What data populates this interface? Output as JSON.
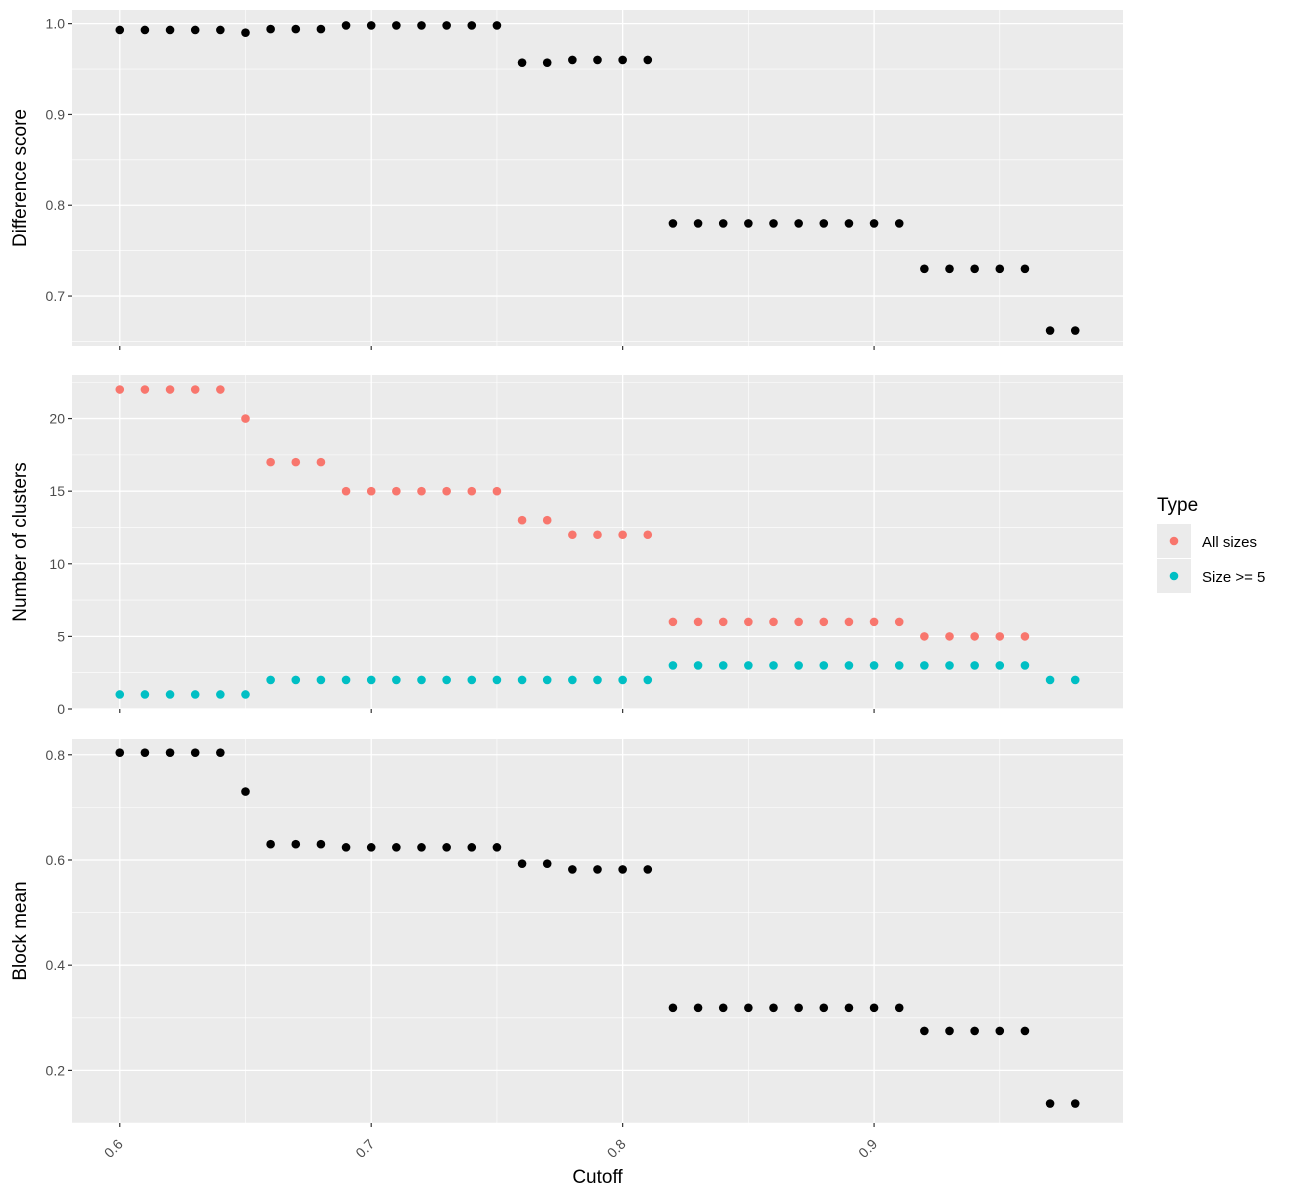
{
  "chart_data": [
    {
      "type": "scatter",
      "ylabel": "Difference score",
      "ylim": [
        0.645,
        1.015
      ],
      "yticks": [
        0.7,
        0.8,
        0.9,
        1.0
      ],
      "ytick_labels": [
        "0.7",
        "0.8",
        "0.9",
        "1.0"
      ],
      "series": [
        {
          "x": [
            0.6,
            0.61,
            0.62,
            0.63,
            0.64,
            0.65,
            0.66,
            0.67,
            0.68,
            0.69,
            0.7,
            0.71,
            0.72,
            0.73,
            0.74,
            0.75,
            0.76,
            0.77,
            0.78,
            0.79,
            0.8,
            0.81,
            0.82,
            0.83,
            0.84,
            0.85,
            0.86,
            0.87,
            0.88,
            0.89,
            0.9,
            0.91,
            0.92,
            0.93,
            0.94,
            0.95,
            0.96,
            0.97,
            0.98
          ],
          "values": [
            0.993,
            0.993,
            0.993,
            0.993,
            0.993,
            0.99,
            0.994,
            0.994,
            0.994,
            0.998,
            0.998,
            0.998,
            0.998,
            0.998,
            0.998,
            0.998,
            0.957,
            0.957,
            0.96,
            0.96,
            0.96,
            0.96,
            0.78,
            0.78,
            0.78,
            0.78,
            0.78,
            0.78,
            0.78,
            0.78,
            0.78,
            0.78,
            0.73,
            0.73,
            0.73,
            0.73,
            0.73,
            0.662,
            0.662
          ],
          "color": "#000000"
        }
      ]
    },
    {
      "type": "scatter",
      "ylabel": "Number of clusters",
      "ylim": [
        0,
        23
      ],
      "yticks": [
        0,
        5,
        10,
        15,
        20
      ],
      "ytick_labels": [
        "0",
        "5",
        "10",
        "15",
        "20"
      ],
      "series": [
        {
          "name": "All sizes",
          "x": [
            0.6,
            0.61,
            0.62,
            0.63,
            0.64,
            0.65,
            0.66,
            0.67,
            0.68,
            0.69,
            0.7,
            0.71,
            0.72,
            0.73,
            0.74,
            0.75,
            0.76,
            0.77,
            0.78,
            0.79,
            0.8,
            0.81,
            0.82,
            0.83,
            0.84,
            0.85,
            0.86,
            0.87,
            0.88,
            0.89,
            0.9,
            0.91,
            0.92,
            0.93,
            0.94,
            0.95,
            0.96
          ],
          "values": [
            22,
            22,
            22,
            22,
            22,
            20,
            17,
            17,
            17,
            15,
            15,
            15,
            15,
            15,
            15,
            15,
            13,
            13,
            12,
            12,
            12,
            12,
            6,
            6,
            6,
            6,
            6,
            6,
            6,
            6,
            6,
            6,
            5,
            5,
            5,
            5,
            5
          ],
          "color": "#F8766D"
        },
        {
          "name": "Size >= 5",
          "x": [
            0.6,
            0.61,
            0.62,
            0.63,
            0.64,
            0.65,
            0.66,
            0.67,
            0.68,
            0.69,
            0.7,
            0.71,
            0.72,
            0.73,
            0.74,
            0.75,
            0.76,
            0.77,
            0.78,
            0.79,
            0.8,
            0.81,
            0.82,
            0.83,
            0.84,
            0.85,
            0.86,
            0.87,
            0.88,
            0.89,
            0.9,
            0.91,
            0.92,
            0.93,
            0.94,
            0.95,
            0.96,
            0.97,
            0.98
          ],
          "values": [
            1,
            1,
            1,
            1,
            1,
            1,
            2,
            2,
            2,
            2,
            2,
            2,
            2,
            2,
            2,
            2,
            2,
            2,
            2,
            2,
            2,
            2,
            3,
            3,
            3,
            3,
            3,
            3,
            3,
            3,
            3,
            3,
            3,
            3,
            3,
            3,
            3,
            2,
            2
          ],
          "color": "#00BFC4"
        }
      ]
    },
    {
      "type": "scatter",
      "ylabel": "Block mean",
      "ylim": [
        0.1,
        0.83
      ],
      "yticks": [
        0.2,
        0.4,
        0.6,
        0.8
      ],
      "ytick_labels": [
        "0.2",
        "0.4",
        "0.6",
        "0.8"
      ],
      "series": [
        {
          "x": [
            0.6,
            0.61,
            0.62,
            0.63,
            0.64,
            0.65,
            0.66,
            0.67,
            0.68,
            0.69,
            0.7,
            0.71,
            0.72,
            0.73,
            0.74,
            0.75,
            0.76,
            0.77,
            0.78,
            0.79,
            0.8,
            0.81,
            0.82,
            0.83,
            0.84,
            0.85,
            0.86,
            0.87,
            0.88,
            0.89,
            0.9,
            0.91,
            0.92,
            0.93,
            0.94,
            0.95,
            0.96,
            0.97,
            0.98
          ],
          "values": [
            0.804,
            0.804,
            0.804,
            0.804,
            0.804,
            0.73,
            0.63,
            0.63,
            0.63,
            0.624,
            0.624,
            0.624,
            0.624,
            0.624,
            0.624,
            0.624,
            0.593,
            0.593,
            0.582,
            0.582,
            0.582,
            0.582,
            0.319,
            0.319,
            0.319,
            0.319,
            0.319,
            0.319,
            0.319,
            0.319,
            0.319,
            0.319,
            0.275,
            0.275,
            0.275,
            0.275,
            0.275,
            0.137,
            0.137
          ],
          "color": "#000000"
        }
      ]
    }
  ],
  "x_axis": {
    "label": "Cutoff",
    "xlim": [
      0.581,
      0.999
    ],
    "ticks": [
      0.6,
      0.7,
      0.8,
      0.9
    ],
    "tick_labels": [
      "0.6",
      "0.7",
      "0.8",
      "0.9"
    ]
  },
  "legend": {
    "title": "Type",
    "position": "right",
    "items": [
      {
        "label": "All sizes",
        "color": "#F8766D"
      },
      {
        "label": "Size >= 5",
        "color": "#00BFC4"
      }
    ]
  },
  "grid": true,
  "colors": {
    "panel_background": "#EBEBEB",
    "grid_major": "#FFFFFF",
    "tick_label": "#4D4D4D"
  }
}
